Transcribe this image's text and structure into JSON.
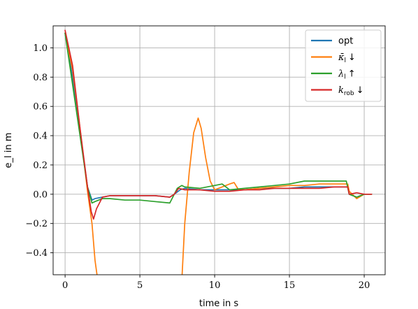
{
  "chart_data": {
    "type": "line",
    "xlabel": "time in s",
    "ylabel": "e_l in m",
    "xlim": [
      -0.8,
      21.4
    ],
    "ylim": [
      -0.55,
      1.15
    ],
    "xticks": [
      0,
      5,
      10,
      15,
      20
    ],
    "yticks": [
      -0.4,
      -0.2,
      0.0,
      0.2,
      0.4,
      0.6,
      0.8,
      1.0
    ],
    "xtick_labels": [
      "0",
      "5",
      "10",
      "15",
      "20"
    ],
    "ytick_labels": [
      "−0.4",
      "−0.2",
      "0.0",
      "0.2",
      "0.4",
      "0.6",
      "0.8",
      "1.0"
    ],
    "grid": true,
    "legend_position": "top-right",
    "series": [
      {
        "name": "opt",
        "legend": {
          "base": "opt",
          "sub": "",
          "arrow": ""
        },
        "color": "#1f77b4",
        "x": [
          0,
          0.5,
          1.0,
          1.5,
          1.8,
          2.0,
          2.5,
          3,
          4,
          5,
          6,
          7,
          7.3,
          7.7,
          8,
          9,
          10,
          11,
          12,
          13,
          14,
          15,
          16,
          17,
          18,
          18.9,
          19.0,
          19.5,
          20,
          20.5
        ],
        "y": [
          1.1,
          0.8,
          0.42,
          0.05,
          -0.04,
          -0.03,
          -0.02,
          -0.01,
          -0.01,
          -0.01,
          -0.01,
          -0.02,
          0.0,
          0.03,
          0.04,
          0.03,
          0.03,
          0.03,
          0.03,
          0.04,
          0.04,
          0.04,
          0.05,
          0.05,
          0.05,
          0.05,
          0.0,
          -0.02,
          0.0,
          0.0
        ]
      },
      {
        "name": "kappa_l down",
        "legend": {
          "base": "κ̄",
          "sub": "l",
          "arrow": "↓"
        },
        "color": "#ff7f0e",
        "x": [
          0,
          0.5,
          1.0,
          1.5,
          1.8,
          2.0,
          2.2,
          7.8,
          8.0,
          8.3,
          8.6,
          8.9,
          9.1,
          9.4,
          9.7,
          10.0,
          10.5,
          11.0,
          11.3,
          11.6,
          12,
          13,
          14,
          15,
          16,
          17,
          18,
          18.9,
          19.0,
          19.5,
          20,
          20.5
        ],
        "y": [
          1.1,
          0.85,
          0.45,
          0.02,
          -0.2,
          -0.45,
          -0.6,
          -0.6,
          -0.2,
          0.15,
          0.42,
          0.52,
          0.45,
          0.25,
          0.09,
          0.03,
          0.05,
          0.07,
          0.08,
          0.03,
          0.03,
          0.04,
          0.05,
          0.06,
          0.06,
          0.07,
          0.07,
          0.07,
          0.02,
          -0.03,
          0.0,
          0.0
        ]
      },
      {
        "name": "lambda_l up",
        "legend": {
          "base": "λ",
          "sub": "l",
          "arrow": "↑"
        },
        "color": "#2ca02c",
        "x": [
          0,
          0.5,
          1.0,
          1.5,
          1.8,
          2.0,
          2.5,
          3,
          4,
          5,
          6,
          7,
          7.2,
          7.5,
          7.8,
          8,
          9,
          10,
          10.5,
          11,
          12,
          13,
          14,
          15,
          16,
          17,
          18,
          18.8,
          19.0,
          19.5,
          20,
          20.5
        ],
        "y": [
          1.1,
          0.75,
          0.4,
          0.05,
          -0.06,
          -0.05,
          -0.03,
          -0.03,
          -0.04,
          -0.04,
          -0.05,
          -0.06,
          -0.02,
          0.04,
          0.06,
          0.05,
          0.04,
          0.06,
          0.07,
          0.03,
          0.04,
          0.05,
          0.06,
          0.07,
          0.09,
          0.09,
          0.09,
          0.09,
          0.0,
          -0.02,
          0.0,
          0.0
        ]
      },
      {
        "name": "k_rob down",
        "legend": {
          "base": "k",
          "sub": "rob",
          "arrow": "↓"
        },
        "color": "#d62728",
        "x": [
          0,
          0.5,
          1.0,
          1.5,
          1.75,
          1.9,
          2.1,
          2.5,
          3,
          4,
          5,
          6,
          7,
          7.3,
          7.6,
          8,
          9,
          10,
          11,
          12,
          13,
          14,
          15,
          16,
          17,
          18,
          18.9,
          19.0,
          19.5,
          20,
          20.5
        ],
        "y": [
          1.12,
          0.88,
          0.45,
          0.05,
          -0.12,
          -0.17,
          -0.1,
          -0.02,
          -0.01,
          -0.01,
          -0.01,
          -0.01,
          -0.02,
          0.0,
          0.04,
          0.03,
          0.03,
          0.02,
          0.02,
          0.03,
          0.03,
          0.04,
          0.04,
          0.04,
          0.04,
          0.05,
          0.05,
          0.0,
          0.01,
          0.0,
          0.0
        ]
      }
    ]
  }
}
